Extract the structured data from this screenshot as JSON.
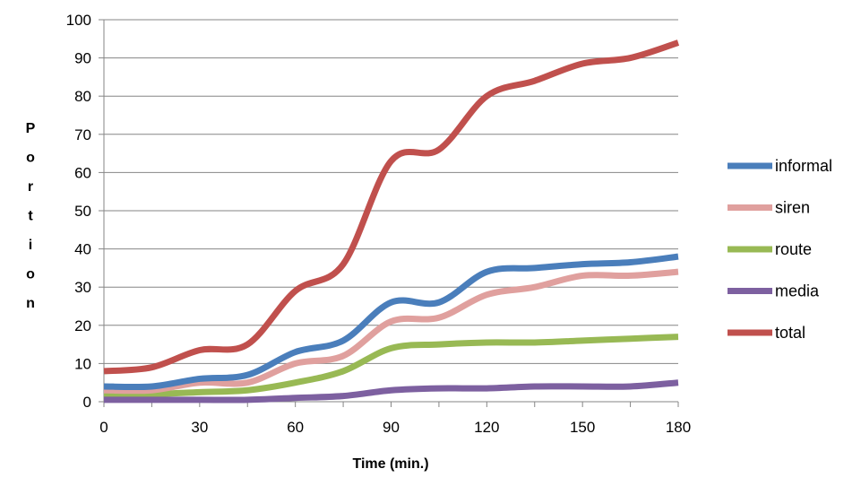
{
  "chart_data": {
    "type": "line",
    "title": "",
    "xlabel": "Time (min.)",
    "ylabel": "Portion",
    "x": [
      0,
      15,
      30,
      45,
      60,
      75,
      90,
      105,
      120,
      135,
      150,
      165,
      180
    ],
    "xlim": [
      0,
      180
    ],
    "ylim": [
      0,
      100
    ],
    "x_ticks": [
      "0",
      "30",
      "60",
      "90",
      "120",
      "150",
      "180"
    ],
    "y_ticks": [
      "0",
      "10",
      "20",
      "30",
      "40",
      "50",
      "60",
      "70",
      "80",
      "90",
      "100"
    ],
    "grid": "horizontal",
    "legend_position": "right",
    "series": [
      {
        "name": "informal",
        "color": "#4a7ebb",
        "values": [
          4,
          4,
          6,
          7,
          13,
          16,
          26,
          26,
          34,
          35,
          36,
          36.5,
          38
        ]
      },
      {
        "name": "siren",
        "color": "#e0a09e",
        "values": [
          3,
          3,
          5,
          5,
          10,
          12,
          21,
          22,
          28,
          30,
          33,
          33,
          34
        ]
      },
      {
        "name": "route",
        "color": "#98b954",
        "values": [
          2,
          2,
          2.5,
          3,
          5,
          8,
          14,
          15,
          15.5,
          15.5,
          16,
          16.5,
          17
        ]
      },
      {
        "name": "media",
        "color": "#7d60a0",
        "values": [
          0.5,
          0.5,
          0.5,
          0.5,
          1,
          1.5,
          3,
          3.5,
          3.5,
          4,
          4,
          4,
          5
        ]
      },
      {
        "name": "total",
        "color": "#c0504d",
        "values": [
          8,
          9,
          13.5,
          15,
          29,
          36,
          63,
          66,
          80,
          84,
          88.5,
          90,
          94
        ]
      }
    ]
  }
}
